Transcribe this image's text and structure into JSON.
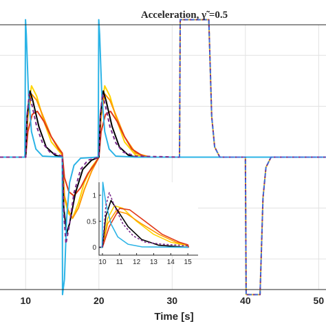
{
  "chart_data": {
    "type": "line",
    "title": "Acceleration, γ̃ =0.5",
    "xlabel": "Time [s]",
    "ylabel": "",
    "xlim": [
      6.5,
      51
    ],
    "ylim": [
      -1.3,
      1.3
    ],
    "x_ticks": [
      "10",
      "20",
      "30",
      "40",
      "50"
    ],
    "grid": true,
    "series": [
      {
        "color": "#ffd400",
        "dash": false,
        "points": [
          [
            6.5,
            0
          ],
          [
            10,
            0
          ],
          [
            10.3,
            0.45
          ],
          [
            10.8,
            0.7
          ],
          [
            11.5,
            0.6
          ],
          [
            12.5,
            0.35
          ],
          [
            13.5,
            0.15
          ],
          [
            15,
            0.02
          ],
          [
            15.3,
            -0.4
          ],
          [
            15.8,
            -0.55
          ],
          [
            16.4,
            -0.6
          ],
          [
            17.2,
            -0.45
          ],
          [
            18,
            -0.25
          ],
          [
            19,
            -0.1
          ],
          [
            20,
            0
          ],
          [
            20.3,
            0.45
          ],
          [
            20.8,
            0.7
          ],
          [
            21.5,
            0.6
          ],
          [
            22.5,
            0.35
          ],
          [
            23.5,
            0.15
          ],
          [
            25,
            0.02
          ],
          [
            27,
            0
          ],
          [
            31,
            0
          ],
          [
            31.1,
            1.35
          ],
          [
            32,
            1.35
          ],
          [
            33,
            1.35
          ],
          [
            34,
            1.35
          ],
          [
            35,
            1.35
          ],
          [
            35.4,
            0.4
          ],
          [
            35.8,
            0.1
          ],
          [
            36.5,
            0
          ],
          [
            40,
            0
          ],
          [
            40.1,
            -1.35
          ],
          [
            42,
            -1.35
          ],
          [
            42.4,
            -0.4
          ],
          [
            42.8,
            -0.1
          ],
          [
            43.5,
            0
          ],
          [
            51,
            0
          ]
        ]
      },
      {
        "color": "#ff9900",
        "dash": false,
        "points": [
          [
            6.5,
            0
          ],
          [
            10,
            0
          ],
          [
            10.3,
            0.4
          ],
          [
            10.8,
            0.62
          ],
          [
            11.5,
            0.56
          ],
          [
            12.5,
            0.38
          ],
          [
            13.5,
            0.2
          ],
          [
            15,
            0.04
          ],
          [
            15.3,
            -0.38
          ],
          [
            15.8,
            -0.52
          ],
          [
            16.4,
            -0.6
          ],
          [
            17.2,
            -0.5
          ],
          [
            18,
            -0.32
          ],
          [
            19,
            -0.14
          ],
          [
            20,
            0
          ],
          [
            20.3,
            0.4
          ],
          [
            20.8,
            0.62
          ],
          [
            21.5,
            0.56
          ],
          [
            22.5,
            0.38
          ],
          [
            23.5,
            0.2
          ],
          [
            25,
            0.04
          ],
          [
            27,
            0
          ],
          [
            51,
            0
          ]
        ]
      },
      {
        "color": "#e03a1a",
        "dash": false,
        "points": [
          [
            6.5,
            0
          ],
          [
            10,
            0
          ],
          [
            10.3,
            0.25
          ],
          [
            10.9,
            0.42
          ],
          [
            11.6,
            0.45
          ],
          [
            12.5,
            0.35
          ],
          [
            13.5,
            0.2
          ],
          [
            14.5,
            0.08
          ],
          [
            15,
            0.04
          ],
          [
            15.3,
            -0.2
          ],
          [
            15.9,
            -0.34
          ],
          [
            16.6,
            -0.38
          ],
          [
            17.5,
            -0.3
          ],
          [
            18.5,
            -0.16
          ],
          [
            19.5,
            -0.06
          ],
          [
            20,
            0
          ],
          [
            20.3,
            0.25
          ],
          [
            20.9,
            0.42
          ],
          [
            21.6,
            0.45
          ],
          [
            22.5,
            0.35
          ],
          [
            23.5,
            0.2
          ],
          [
            24.5,
            0.08
          ],
          [
            26,
            0.01
          ],
          [
            27,
            0
          ],
          [
            51,
            0
          ]
        ]
      },
      {
        "color": "#000000",
        "dash": false,
        "points": [
          [
            6.5,
            0
          ],
          [
            10,
            0
          ],
          [
            10.2,
            0.4
          ],
          [
            10.6,
            0.65
          ],
          [
            11,
            0.55
          ],
          [
            11.8,
            0.3
          ],
          [
            12.8,
            0.1
          ],
          [
            14,
            0.02
          ],
          [
            15,
            0
          ],
          [
            15.2,
            -0.5
          ],
          [
            15.6,
            -0.75
          ],
          [
            16,
            -0.65
          ],
          [
            16.8,
            -0.35
          ],
          [
            17.8,
            -0.12
          ],
          [
            19,
            -0.03
          ],
          [
            20,
            0
          ],
          [
            20.2,
            0.4
          ],
          [
            20.6,
            0.65
          ],
          [
            21,
            0.55
          ],
          [
            21.8,
            0.3
          ],
          [
            22.8,
            0.1
          ],
          [
            24,
            0.02
          ],
          [
            25,
            0
          ],
          [
            51,
            0
          ]
        ]
      },
      {
        "color": "#2bb3e6",
        "dash": false,
        "points": [
          [
            6.5,
            0
          ],
          [
            9.9,
            0
          ],
          [
            9.98,
            1.35
          ],
          [
            10.1,
            1.2
          ],
          [
            10.4,
            0.6
          ],
          [
            10.8,
            0.25
          ],
          [
            11.4,
            0.08
          ],
          [
            12.3,
            0.01
          ],
          [
            15,
            0
          ],
          [
            15.03,
            -1.35
          ],
          [
            15.3,
            -1.2
          ],
          [
            15.6,
            -0.6
          ],
          [
            16,
            -0.25
          ],
          [
            16.6,
            -0.08
          ],
          [
            17.5,
            -0.01
          ],
          [
            19.9,
            0
          ],
          [
            19.98,
            1.35
          ],
          [
            20.1,
            1.2
          ],
          [
            20.4,
            0.6
          ],
          [
            20.8,
            0.25
          ],
          [
            21.4,
            0.08
          ],
          [
            22.3,
            0.01
          ],
          [
            25,
            0
          ],
          [
            51,
            0
          ]
        ]
      },
      {
        "color": "#7a2a8c",
        "dash": true,
        "points": [
          [
            6.5,
            0
          ],
          [
            10,
            0
          ],
          [
            10.2,
            0.42
          ],
          [
            10.5,
            0.62
          ],
          [
            10.9,
            0.5
          ],
          [
            11.5,
            0.3
          ],
          [
            12.3,
            0.14
          ],
          [
            13.3,
            0.05
          ],
          [
            15,
            0.01
          ],
          [
            15.2,
            -0.55
          ],
          [
            15.5,
            -0.85
          ],
          [
            15.9,
            -0.7
          ],
          [
            16.6,
            -0.35
          ],
          [
            17.5,
            -0.12
          ],
          [
            18.5,
            -0.03
          ],
          [
            20,
            0
          ],
          [
            20.2,
            0.42
          ],
          [
            20.5,
            0.62
          ],
          [
            20.9,
            0.5
          ],
          [
            21.5,
            0.3
          ],
          [
            22.3,
            0.14
          ],
          [
            23.3,
            0.05
          ],
          [
            25,
            0.01
          ],
          [
            31,
            0
          ],
          [
            31.1,
            1.35
          ],
          [
            35,
            1.35
          ],
          [
            35.4,
            0.4
          ],
          [
            35.8,
            0.1
          ],
          [
            36.5,
            0
          ],
          [
            40,
            0
          ],
          [
            40.1,
            -1.35
          ],
          [
            42,
            -1.35
          ],
          [
            42.4,
            -0.4
          ],
          [
            42.8,
            -0.1
          ],
          [
            43.5,
            0
          ],
          [
            51,
            0
          ]
        ]
      },
      {
        "color": "#3f6fd9",
        "dash": true,
        "points": [
          [
            31,
            0
          ],
          [
            31.1,
            1.35
          ],
          [
            35,
            1.35
          ],
          [
            35.4,
            0.4
          ],
          [
            35.8,
            0.1
          ],
          [
            36.5,
            0
          ],
          [
            40,
            0
          ],
          [
            40.1,
            -1.35
          ],
          [
            42,
            -1.35
          ],
          [
            42.4,
            -0.4
          ],
          [
            42.8,
            -0.1
          ],
          [
            43.5,
            0
          ],
          [
            51,
            0
          ]
        ]
      }
    ],
    "inset": {
      "xlim": [
        9.8,
        15.6
      ],
      "ylim": [
        -0.15,
        1.25
      ],
      "x_ticks": [
        "10",
        "11",
        "12",
        "13",
        "14",
        "15"
      ],
      "y_ticks": [
        "0",
        "0.5",
        "1"
      ],
      "series": [
        {
          "color": "#ffd400",
          "points": [
            [
              9.8,
              0
            ],
            [
              10,
              0
            ],
            [
              10.3,
              0.55
            ],
            [
              10.7,
              0.8
            ],
            [
              11.2,
              0.75
            ],
            [
              12,
              0.5
            ],
            [
              13,
              0.25
            ],
            [
              14,
              0.1
            ],
            [
              15,
              0.03
            ],
            [
              15.05,
              0
            ]
          ]
        },
        {
          "color": "#ff9900",
          "points": [
            [
              9.8,
              0
            ],
            [
              10,
              0
            ],
            [
              10.3,
              0.45
            ],
            [
              10.8,
              0.7
            ],
            [
              11.4,
              0.65
            ],
            [
              12.3,
              0.45
            ],
            [
              13.3,
              0.25
            ],
            [
              14.3,
              0.1
            ],
            [
              15,
              0.05
            ],
            [
              15.05,
              0
            ]
          ]
        },
        {
          "color": "#e03a1a",
          "points": [
            [
              9.8,
              0
            ],
            [
              10,
              0
            ],
            [
              10.4,
              0.4
            ],
            [
              11,
              0.75
            ],
            [
              11.6,
              0.72
            ],
            [
              12.5,
              0.5
            ],
            [
              13.5,
              0.25
            ],
            [
              14.5,
              0.1
            ],
            [
              15,
              0.05
            ],
            [
              15.05,
              0
            ]
          ]
        },
        {
          "color": "#000000",
          "points": [
            [
              9.8,
              0
            ],
            [
              10,
              0
            ],
            [
              10.2,
              0.6
            ],
            [
              10.5,
              0.9
            ],
            [
              10.9,
              0.7
            ],
            [
              11.5,
              0.4
            ],
            [
              12.3,
              0.15
            ],
            [
              13.3,
              0.04
            ],
            [
              15,
              0
            ],
            [
              15.05,
              0
            ]
          ]
        },
        {
          "color": "#2bb3e6",
          "points": [
            [
              9.8,
              0
            ],
            [
              9.98,
              0
            ],
            [
              10.02,
              1.25
            ],
            [
              10.2,
              0.85
            ],
            [
              10.5,
              0.45
            ],
            [
              10.9,
              0.2
            ],
            [
              11.5,
              0.06
            ],
            [
              12.3,
              0.01
            ],
            [
              15.05,
              0
            ]
          ]
        },
        {
          "color": "#7a2a8c",
          "dash": true,
          "points": [
            [
              9.8,
              0
            ],
            [
              10,
              0
            ],
            [
              10.2,
              0.8
            ],
            [
              10.4,
              1.05
            ],
            [
              10.7,
              0.8
            ],
            [
              11.2,
              0.45
            ],
            [
              11.8,
              0.22
            ],
            [
              12.5,
              0.1
            ],
            [
              13.5,
              0.06
            ],
            [
              14.5,
              0.04
            ],
            [
              15,
              0.03
            ],
            [
              15.05,
              0
            ]
          ]
        }
      ]
    }
  }
}
